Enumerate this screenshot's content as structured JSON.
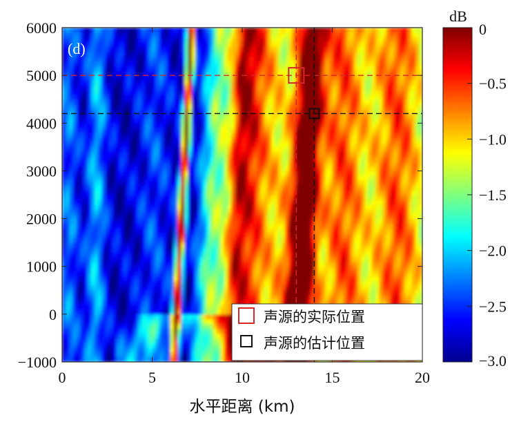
{
  "chart_data": {
    "type": "heatmap",
    "panel_label": "(d)",
    "xlabel": "水平距离 (km)",
    "ylabel": "",
    "xlim": [
      0,
      20
    ],
    "ylim": [
      -1000,
      6000
    ],
    "x_ticks": [
      0,
      5,
      10,
      15,
      20
    ],
    "y_ticks": [
      -1000,
      0,
      1000,
      2000,
      3000,
      4000,
      5000,
      6000
    ],
    "x_tick_labels": [
      "0",
      "5",
      "10",
      "15",
      "20"
    ],
    "y_tick_labels": [
      "−1000",
      "0",
      "1000",
      "2000",
      "3000",
      "4000",
      "5000",
      "6000"
    ],
    "colorbar": {
      "label": "dB",
      "range": [
        -3.0,
        0
      ],
      "ticks": [
        0,
        -0.5,
        -1.0,
        -1.5,
        -2.0,
        -2.5,
        -3.0
      ],
      "tick_labels": [
        "0",
        "−0.5",
        "−1.0",
        "−1.5",
        "−2.0",
        "−2.5",
        "−3.0"
      ],
      "colormap": "jet"
    },
    "markers": [
      {
        "name": "声源的实际位置",
        "x": 13.0,
        "y": 5000,
        "color": "#d62728"
      },
      {
        "name": "声源的估计位置",
        "x": 14.0,
        "y": 4200,
        "color": "#111111"
      }
    ],
    "legend": {
      "placement": "bottom-right",
      "entries": [
        "声源的实际位置",
        "声源的估计位置"
      ]
    }
  }
}
